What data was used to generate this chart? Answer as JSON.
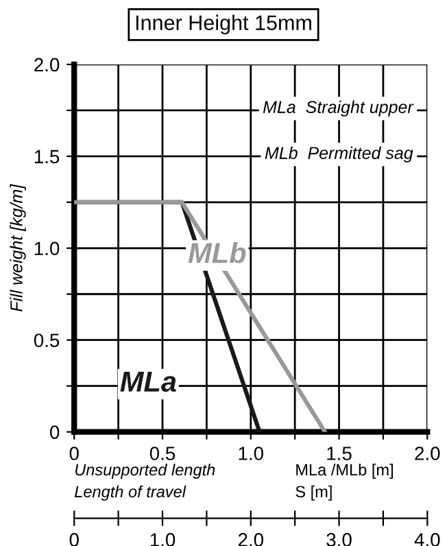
{
  "chart_data": {
    "type": "line",
    "title": "Inner Height 15mm",
    "ylabel": "Fill weight [kg/m]",
    "xlabel": "Unsupported length",
    "x2label": "Length of travel",
    "annotations": [
      "MLa  Straight upper",
      "MLb  Permitted sag",
      "MLa /MLb [m]",
      "S [m]"
    ],
    "series": [
      {
        "name": "MLa",
        "color": "#1a1a1a",
        "x": [
          0,
          0.61,
          1.05
        ],
        "values": [
          1.25,
          1.25,
          0
        ]
      },
      {
        "name": "MLb",
        "color": "#999999",
        "x": [
          0,
          0.61,
          1.42
        ],
        "values": [
          1.25,
          1.25,
          0
        ]
      }
    ],
    "xlim": [
      0,
      2.0
    ],
    "ylim": [
      0,
      2.0
    ],
    "xticks": [
      0,
      {
        "value": 0.25,
        "label": null
      },
      0.5,
      {
        "value": 0.75,
        "label": null
      },
      {
        "value": 1.0,
        "label": "1.0"
      },
      {
        "value": 1.25,
        "label": null
      },
      1.5,
      {
        "value": 1.75,
        "label": null
      },
      {
        "value": 2.0,
        "label": "2.0"
      }
    ],
    "yticks": [
      0,
      {
        "value": 0.25,
        "label": null
      },
      0.5,
      {
        "value": 0.75,
        "label": null
      },
      {
        "value": 1.0,
        "label": "1.0"
      },
      {
        "value": 1.25,
        "label": null
      },
      1.5,
      {
        "value": 1.75,
        "label": null
      },
      {
        "value": 2.0,
        "label": "2.0"
      }
    ],
    "x2lim": [
      0,
      4.0
    ],
    "x2ticks": [
      0,
      {
        "value": 0.5,
        "label": null
      },
      {
        "value": 1.0,
        "label": "1.0"
      },
      {
        "value": 1.5,
        "label": null
      },
      {
        "value": 2.0,
        "label": "2.0"
      },
      {
        "value": 2.5,
        "label": null
      },
      {
        "value": 3.0,
        "label": "3.0"
      },
      {
        "value": 3.5,
        "label": null
      },
      {
        "value": 4.0,
        "label": "4.0"
      }
    ],
    "grid": true,
    "marker": "none",
    "line_style": "solid",
    "legend": false
  }
}
